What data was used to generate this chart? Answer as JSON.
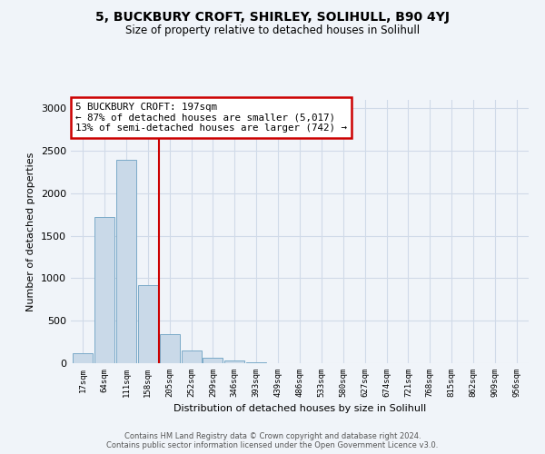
{
  "title": "5, BUCKBURY CROFT, SHIRLEY, SOLIHULL, B90 4YJ",
  "subtitle": "Size of property relative to detached houses in Solihull",
  "xlabel": "Distribution of detached houses by size in Solihull",
  "ylabel": "Number of detached properties",
  "bar_labels": [
    "17sqm",
    "64sqm",
    "111sqm",
    "158sqm",
    "205sqm",
    "252sqm",
    "299sqm",
    "346sqm",
    "393sqm",
    "439sqm",
    "486sqm",
    "533sqm",
    "580sqm",
    "627sqm",
    "674sqm",
    "721sqm",
    "768sqm",
    "815sqm",
    "862sqm",
    "909sqm",
    "956sqm"
  ],
  "bar_values": [
    120,
    1720,
    2390,
    920,
    340,
    150,
    65,
    30,
    15,
    5,
    2,
    1,
    0,
    0,
    0,
    0,
    0,
    0,
    0,
    0,
    0
  ],
  "bar_color": "#c9d9e8",
  "bar_edge_color": "#7aaac8",
  "vline_color": "#cc0000",
  "annotation_title": "5 BUCKBURY CROFT: 197sqm",
  "annotation_line1": "← 87% of detached houses are smaller (5,017)",
  "annotation_line2": "13% of semi-detached houses are larger (742) →",
  "annotation_box_color": "#ffffff",
  "annotation_box_edge": "#cc0000",
  "ylim": [
    0,
    3100
  ],
  "yticks": [
    0,
    500,
    1000,
    1500,
    2000,
    2500,
    3000
  ],
  "footer_line1": "Contains HM Land Registry data © Crown copyright and database right 2024.",
  "footer_line2": "Contains public sector information licensed under the Open Government Licence v3.0.",
  "bg_color": "#f0f4f9",
  "grid_color": "#d0dae8"
}
